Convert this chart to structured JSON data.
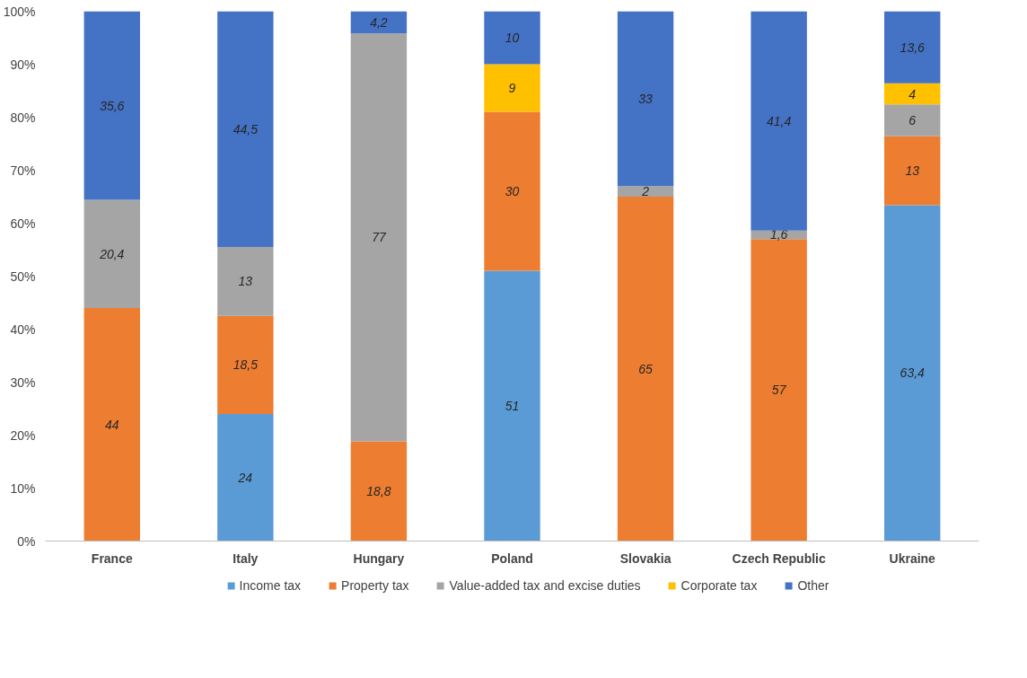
{
  "chart_data": {
    "type": "bar",
    "stacked": true,
    "categories": [
      "France",
      "Italy",
      "Hungary",
      "Poland",
      "Slovakia",
      "Czech Republic",
      "Ukraine"
    ],
    "series": [
      {
        "name": "Income tax",
        "color": "#5b9bd5",
        "values": [
          null,
          24,
          null,
          51,
          null,
          null,
          63.4
        ],
        "value_labels": [
          null,
          "24",
          null,
          "51",
          null,
          null,
          "63,4"
        ]
      },
      {
        "name": "Property tax",
        "color": "#ed7d31",
        "values": [
          44,
          18.5,
          18.8,
          30,
          65,
          57,
          13
        ],
        "value_labels": [
          "44",
          "18,5",
          "18,8",
          "30",
          "65",
          "57",
          "13"
        ]
      },
      {
        "name": "Value-added tax and excise duties",
        "color": "#a5a5a5",
        "values": [
          20.4,
          13,
          77,
          null,
          2,
          1.6,
          6
        ],
        "value_labels": [
          "20,4",
          "13",
          "77",
          null,
          "2",
          "1,6",
          "6"
        ]
      },
      {
        "name": "Corporate tax",
        "color": "#ffc000",
        "values": [
          null,
          null,
          null,
          9,
          null,
          null,
          4
        ],
        "value_labels": [
          null,
          null,
          null,
          "9",
          null,
          null,
          "4"
        ]
      },
      {
        "name": "Other",
        "color": "#4472c4",
        "values": [
          35.6,
          44.5,
          4.2,
          10,
          33,
          41.4,
          13.6
        ],
        "value_labels": [
          "35,6",
          "44,5",
          "4,2",
          "10",
          "33",
          "41,4",
          "13,6"
        ]
      }
    ],
    "ylim": [
      0,
      100
    ],
    "yticks": [
      {
        "value": 0,
        "label": "0%"
      },
      {
        "value": 10,
        "label": "10%"
      },
      {
        "value": 20,
        "label": "20%"
      },
      {
        "value": 30,
        "label": "30%"
      },
      {
        "value": 40,
        "label": "40%"
      },
      {
        "value": 50,
        "label": "50%"
      },
      {
        "value": 60,
        "label": "60%"
      },
      {
        "value": 70,
        "label": "70%"
      },
      {
        "value": 80,
        "label": "80%"
      },
      {
        "value": 90,
        "label": "90%"
      },
      {
        "value": 100,
        "label": "100%"
      }
    ],
    "grid": false,
    "legend": "bottom"
  }
}
